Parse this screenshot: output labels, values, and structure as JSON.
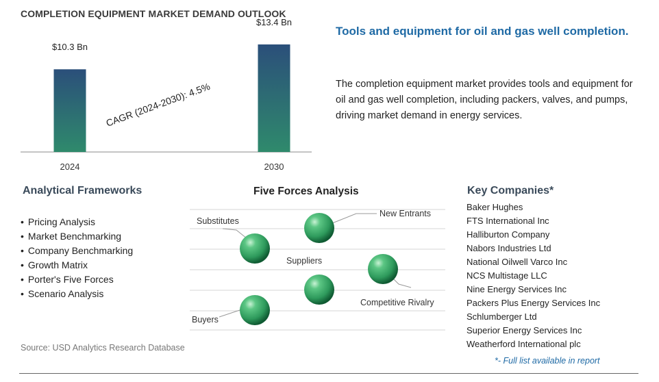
{
  "chart_data": {
    "type": "bar",
    "title": "COMPLETION EQUIPMENT MARKET DEMAND OUTLOOK",
    "categories": [
      "2024",
      "2030"
    ],
    "values": [
      10.3,
      13.4
    ],
    "value_labels": [
      "$10.3 Bn",
      "$13.4 Bn"
    ],
    "annotation": "CAGR (2024-2030):  4.5%",
    "ylim": [
      0,
      14.5
    ],
    "grid": false,
    "colors": {
      "bar_top": "#2b4f7a",
      "bar_bottom": "#2f8a6c"
    }
  },
  "summary": {
    "headline": "Tools and equipment for oil and gas well completion.",
    "description": "The completion equipment market provides tools and equipment for oil and gas well completion, including packers, valves, and pumps, driving market demand in energy services."
  },
  "frameworks": {
    "title": "Analytical Frameworks",
    "items": [
      "Pricing Analysis",
      "Market Benchmarking",
      "Company Benchmarking",
      "Growth Matrix",
      "Porter's Five Forces",
      "Scenario Analysis"
    ]
  },
  "five_forces": {
    "title": "Five Forces Analysis",
    "labels": {
      "substitutes": "Substitutes",
      "new_entrants": "New Entrants",
      "suppliers": "Suppliers",
      "competitive_rivalry": "Competitive Rivalry",
      "buyers": "Buyers"
    },
    "sphere_color": "#2e9a5c"
  },
  "companies": {
    "title": "Key Companies*",
    "items": [
      "Baker Hughes",
      "FTS International Inc",
      "Halliburton Company",
      "Nabors Industries Ltd",
      "National Oilwell Varco Inc",
      "NCS Multistage LLC",
      "Nine Energy Services Inc",
      "Packers Plus Energy Services Inc",
      "Schlumberger Ltd",
      "Superior Energy Services Inc",
      "Weatherford International plc"
    ],
    "footnote": "*- Full list available in report"
  },
  "source": "Source: USD Analytics Research Database"
}
